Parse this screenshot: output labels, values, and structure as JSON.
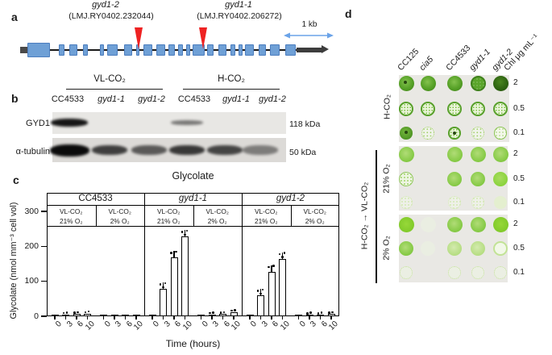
{
  "figure": {
    "panel_labels": {
      "a": "a",
      "b": "b",
      "c": "c",
      "d": "d"
    }
  },
  "gene_diagram": {
    "alleles": [
      {
        "name": "gyd1-2",
        "locus": "(LMJ.RY0402.232044)"
      },
      {
        "name": "gyd1-1",
        "locus": "(LMJ.RY0402.206272)"
      }
    ],
    "scale_label": "1 kb",
    "insertion_tip_x": [
      172,
      252
    ],
    "exon_color": "#6fa0d6",
    "marker_color": "#ee2222",
    "utr5": [
      25,
      11
    ],
    "utr3": [
      368,
      40
    ],
    "exons": [
      [
        34,
        28,
        18
      ],
      [
        73,
        7
      ],
      [
        86,
        10
      ],
      [
        103,
        6
      ],
      [
        124,
        5
      ],
      [
        133,
        13
      ],
      [
        154,
        10
      ],
      [
        169,
        4
      ],
      [
        178,
        11
      ],
      [
        194,
        11
      ],
      [
        209,
        8
      ],
      [
        221,
        6
      ],
      [
        231,
        5
      ],
      [
        239,
        15
      ],
      [
        257,
        8
      ],
      [
        271,
        10
      ],
      [
        286,
        6
      ],
      [
        296,
        5
      ],
      [
        304,
        11
      ],
      [
        321,
        9
      ],
      [
        335,
        12
      ],
      [
        354,
        13
      ]
    ]
  },
  "western_blot": {
    "group_headers": [
      "VL-CO₂",
      "H-CO₂"
    ],
    "lanes": [
      {
        "label": "CC4533",
        "italic": false
      },
      {
        "label": "gyd1-1",
        "italic": true
      },
      {
        "label": "gyd1-2",
        "italic": true
      },
      {
        "label": "CC4533",
        "italic": false
      },
      {
        "label": "gyd1-1",
        "italic": true
      },
      {
        "label": "gyd1-2",
        "italic": true
      }
    ],
    "rows": [
      {
        "label": "GYD1",
        "size": "118 kDa",
        "bands": [
          0.95,
          0,
          0,
          0.5,
          0,
          0
        ]
      },
      {
        "label": "α-tubulin",
        "size": "50 kDa",
        "bands": [
          1,
          0.75,
          0.62,
          0.78,
          0.72,
          0.45
        ]
      }
    ]
  },
  "chart_data": {
    "type": "bar",
    "title": "Glycolate",
    "ylabel": "Glycolate (nmol mm⁻³ cell vol)",
    "xlabel": "Time (hours)",
    "yticks": [
      0,
      100,
      200,
      300
    ],
    "ylim": [
      0,
      330
    ],
    "categories": [
      "0",
      "3",
      "6",
      "10"
    ],
    "strains": [
      "CC4533",
      "gyd1-1",
      "gyd1-2"
    ],
    "strain_italics": [
      false,
      true,
      true
    ],
    "series": [
      {
        "strain": "CC4533",
        "condition": [
          "VL-CO₂",
          "21% O₂"
        ],
        "values": [
          2,
          5,
          6,
          8
        ]
      },
      {
        "strain": "CC4533",
        "condition": [
          "VL-CO₂",
          "2% O₂"
        ],
        "values": [
          2,
          2,
          2,
          3
        ]
      },
      {
        "strain": "gyd1-1",
        "condition": [
          "VL-CO₂",
          "21% O₂"
        ],
        "values": [
          2,
          78,
          168,
          228
        ]
      },
      {
        "strain": "gyd1-1",
        "condition": [
          "VL-CO₂",
          "2% O₂"
        ],
        "values": [
          2,
          5,
          6,
          12
        ]
      },
      {
        "strain": "gyd1-2",
        "condition": [
          "VL-CO₂",
          "21% O₂"
        ],
        "values": [
          2,
          60,
          128,
          165
        ]
      },
      {
        "strain": "gyd1-2",
        "condition": [
          "VL-CO₂",
          "2% O₂"
        ],
        "values": [
          2,
          4,
          4,
          6
        ]
      }
    ],
    "bar_fill": "#ffffff",
    "bar_border": "#000000",
    "legend": "none",
    "grid": false
  },
  "spot_assay": {
    "col_labels": [
      {
        "label": "CC125",
        "italic": false
      },
      {
        "label": "cia5",
        "italic": true
      },
      {
        "label": "CC4533",
        "italic": false
      },
      {
        "label": "gyd1-1",
        "italic": true
      },
      {
        "label": "gyd1-2",
        "italic": true
      }
    ],
    "unit_label": "Chl μg mL⁻¹",
    "shift_label": "H-CO₂ → VL-CO₂",
    "plates": [
      {
        "label": "H-CO₂",
        "chl": [
          "2",
          "0.5",
          "0.1"
        ],
        "spots": [
          [
            "dark-dot",
            "dark",
            "dark",
            "dark-speck",
            "darkest"
          ],
          [
            "speck-med",
            "speck-med",
            "speck-med",
            "speck-med",
            "speck-med"
          ],
          [
            "small-dark-dot",
            "speck-sparse",
            "speck-dot",
            "speck-sparse",
            "speck-ring"
          ]
        ]
      },
      {
        "label": "21% O₂",
        "chl": [
          "2",
          "0.5",
          "0.1"
        ],
        "spots": [
          [
            "med",
            "none",
            "med",
            "med",
            "med"
          ],
          [
            "speck-pale",
            "none",
            "med",
            "med",
            "bright"
          ],
          [
            "speck-faint",
            "none",
            "speck-faint",
            "speck-faint",
            "faint"
          ]
        ]
      },
      {
        "label": "2% O₂",
        "chl": [
          "2",
          "0.5",
          "0.1"
        ],
        "spots": [
          [
            "bright-strong",
            "ghost",
            "med",
            "med",
            "bright-strong"
          ],
          [
            "med",
            "ghost",
            "pale",
            "pale",
            "pale-ring"
          ],
          [
            "ring-faint",
            "none",
            "ring-faint",
            "ring-faint",
            "ring-faint"
          ]
        ]
      }
    ]
  }
}
